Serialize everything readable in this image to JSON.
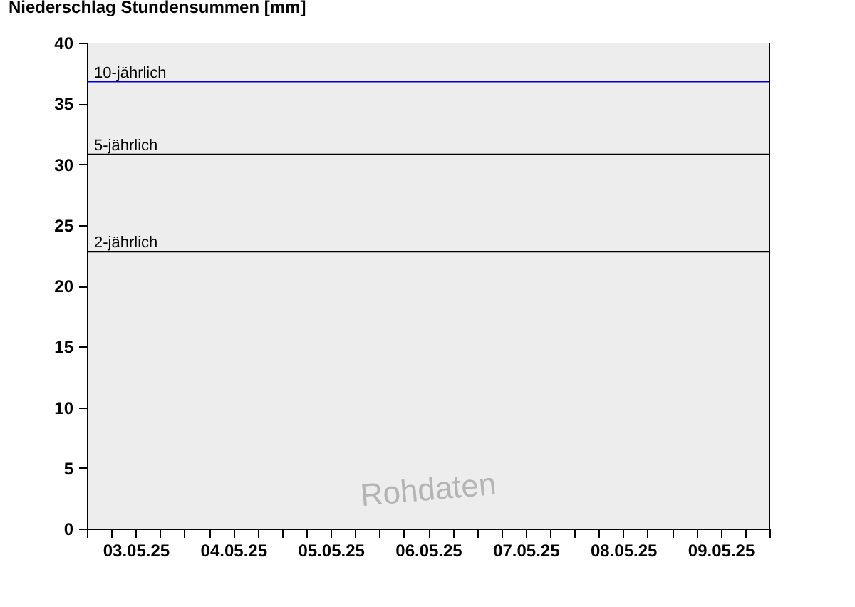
{
  "chart_data": {
    "type": "bar",
    "title": "Niederschlag Stundensummen [mm]",
    "xlim": [
      "--05-03T00:00",
      "--05-10T00:00"
    ],
    "xticks": [
      {
        "value": "--05-03T00:00",
        "label": null
      },
      {
        "value": "--05-03T06:00",
        "label": null
      },
      {
        "value": "--05-03T12:00",
        "label": "03.05.25"
      },
      {
        "value": "--05-03T18:00",
        "label": null
      },
      {
        "value": "--05-04T00:00",
        "label": null
      },
      {
        "value": "--05-04T06:00",
        "label": null
      },
      {
        "value": "--05-04T12:00",
        "label": "04.05.25"
      },
      {
        "value": "--05-04T18:00",
        "label": null
      },
      {
        "value": "--05-05T00:00",
        "label": null
      },
      {
        "value": "--05-05T06:00",
        "label": null
      },
      {
        "value": "--05-05T12:00",
        "label": "05.05.25"
      },
      {
        "value": "--05-05T18:00",
        "label": null
      },
      {
        "value": "--05-06T00:00",
        "label": null
      },
      {
        "value": "--05-06T06:00",
        "label": null
      },
      {
        "value": "--05-06T12:00",
        "label": "06.05.25"
      },
      {
        "value": "--05-06T18:00",
        "label": null
      },
      {
        "value": "--05-07T00:00",
        "label": null
      },
      {
        "value": "--05-07T06:00",
        "label": null
      },
      {
        "value": "--05-07T12:00",
        "label": "07.05.25"
      },
      {
        "value": "--05-07T18:00",
        "label": null
      },
      {
        "value": "--05-08T00:00",
        "label": null
      },
      {
        "value": "--05-08T06:00",
        "label": null
      },
      {
        "value": "--05-08T12:00",
        "label": "08.05.25"
      },
      {
        "value": "--05-08T18:00",
        "label": null
      },
      {
        "value": "--05-09T00:00",
        "label": null
      },
      {
        "value": "--05-09T06:00",
        "label": null
      },
      {
        "value": "--05-09T12:00",
        "label": "09.05.25"
      },
      {
        "value": "--05-09T18:00",
        "label": null
      },
      {
        "value": "--05-10T00:00",
        "label": null
      }
    ],
    "ylim": [
      0,
      40
    ],
    "yticks": [
      0,
      5,
      10,
      15,
      20,
      25,
      30,
      35,
      40
    ],
    "ref_lines": [
      {
        "axis": "y",
        "value": 36.8,
        "label": "10-jährlich",
        "color": "#0000cc"
      },
      {
        "axis": "y",
        "value": 30.8,
        "label": "5-jährlich",
        "color": "#000000"
      },
      {
        "axis": "y",
        "value": 22.8,
        "label": "2-jährlich",
        "color": "#000000"
      }
    ],
    "annotations": [
      "Rohdaten"
    ],
    "grid": false
  }
}
